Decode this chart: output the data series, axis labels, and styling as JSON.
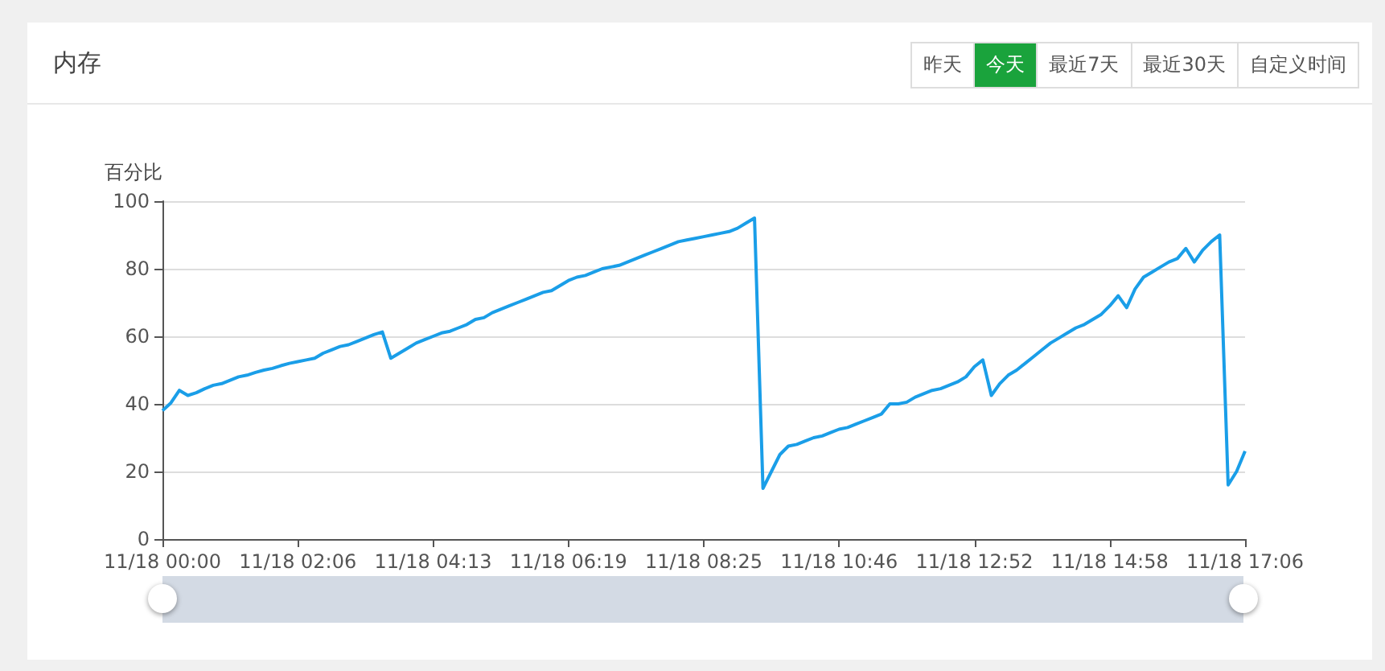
{
  "chart_data": {
    "type": "line",
    "title": "内存",
    "ylabel": "百分比",
    "annotations": [
      "昨天",
      "今天",
      "最近7天",
      "最近30天",
      "自定义时间"
    ],
    "categories": [
      "11/18 00:00",
      null,
      null,
      null,
      null,
      null,
      null,
      null,
      null,
      null,
      null,
      null,
      null,
      null,
      null,
      null,
      "11/18 02:06",
      null,
      null,
      null,
      null,
      null,
      null,
      null,
      null,
      null,
      null,
      null,
      null,
      null,
      null,
      null,
      "11/18 04:13",
      null,
      null,
      null,
      null,
      null,
      null,
      null,
      null,
      null,
      null,
      null,
      null,
      null,
      null,
      null,
      "11/18 06:19",
      null,
      null,
      null,
      null,
      null,
      null,
      null,
      null,
      null,
      null,
      null,
      null,
      null,
      null,
      null,
      "11/18 08:25",
      null,
      null,
      null,
      null,
      null,
      null,
      null,
      null,
      null,
      null,
      null,
      null,
      null,
      null,
      null,
      "11/18 10:46",
      null,
      null,
      null,
      null,
      null,
      null,
      null,
      null,
      null,
      null,
      null,
      null,
      null,
      null,
      null,
      "11/18 12:52",
      null,
      null,
      null,
      null,
      null,
      null,
      null,
      null,
      null,
      null,
      null,
      null,
      null,
      null,
      null,
      "11/18 14:58",
      null,
      null,
      null,
      null,
      null,
      null,
      null,
      null,
      null,
      null,
      null,
      null,
      null,
      null,
      null,
      "11/18 17:06"
    ],
    "series": [
      {
        "color": "#1a9ee8",
        "values": [
          38,
          40.3,
          44,
          42.5,
          43.3,
          44.5,
          45.5,
          46,
          47,
          48,
          48.5,
          49.3,
          50,
          50.5,
          51.3,
          52,
          52.5,
          53,
          53.5,
          55,
          56,
          57,
          57.5,
          58.5,
          59.5,
          60.5,
          61.3,
          53.5,
          55,
          56.5,
          58,
          59,
          60,
          61,
          61.5,
          62.5,
          63.5,
          65,
          65.5,
          67,
          68,
          69,
          70,
          71,
          72,
          73,
          73.5,
          75,
          76.5,
          77.5,
          78,
          79,
          80,
          80.5,
          81,
          82,
          83,
          84,
          85,
          86,
          87,
          88,
          88.5,
          89,
          89.5,
          90,
          90.5,
          91,
          92,
          93.5,
          95,
          15,
          20,
          25,
          27.5,
          28,
          29,
          30,
          30.5,
          31.5,
          32.5,
          33,
          34,
          35,
          36,
          37,
          40,
          40,
          40.5,
          42,
          43,
          44,
          44.5,
          45.5,
          46.5,
          48,
          51,
          53,
          42.5,
          46,
          48.5,
          50,
          52,
          54,
          56,
          58,
          59.5,
          61,
          62.5,
          63.5,
          65,
          66.5,
          69,
          72,
          68.5,
          74,
          77.5,
          79,
          80.5,
          82,
          83,
          86,
          82,
          85.5,
          88,
          90,
          16,
          20,
          26
        ]
      }
    ],
    "ylim": [
      0,
      100
    ],
    "yticks": [
      0,
      20,
      40,
      60,
      80,
      100
    ],
    "grid": "y",
    "marker": "none",
    "line_style": "solid"
  }
}
